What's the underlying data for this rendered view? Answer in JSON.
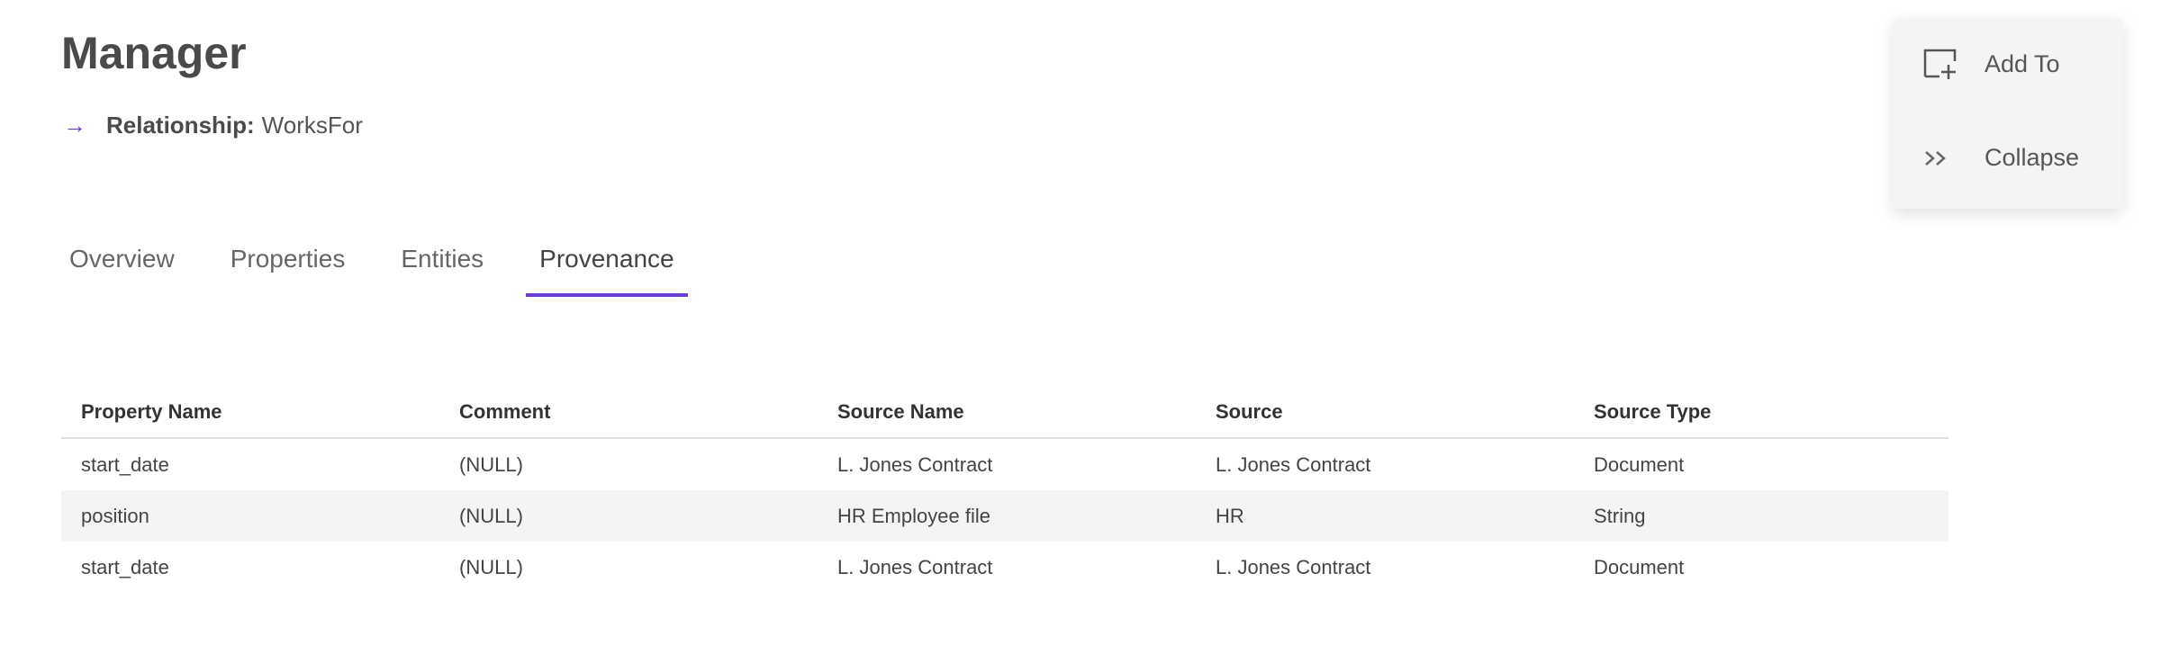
{
  "header": {
    "title": "Manager",
    "relationship_label": "Relationship:",
    "relationship_value": "WorksFor"
  },
  "tabs": [
    {
      "label": "Overview",
      "active": false
    },
    {
      "label": "Properties",
      "active": false
    },
    {
      "label": "Entities",
      "active": false
    },
    {
      "label": "Provenance",
      "active": true
    }
  ],
  "table": {
    "columns": [
      "Property Name",
      "Comment",
      "Source Name",
      "Source",
      "Source Type"
    ],
    "rows": [
      [
        "start_date",
        "(NULL)",
        "L. Jones Contract",
        "L. Jones Contract",
        "Document"
      ],
      [
        "position",
        "(NULL)",
        "HR Employee file",
        "HR",
        "String"
      ],
      [
        "start_date",
        "(NULL)",
        "L. Jones Contract",
        "L. Jones Contract",
        "Document"
      ]
    ]
  },
  "panel": {
    "add_to_label": "Add To",
    "collapse_label": "Collapse"
  },
  "colors": {
    "accent": "#6b3fd6"
  }
}
